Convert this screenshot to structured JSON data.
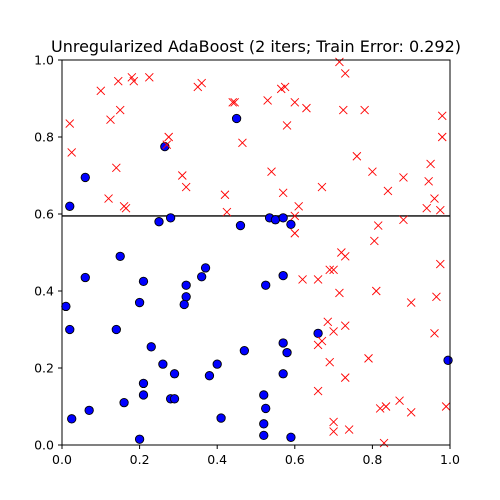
{
  "chart_data": {
    "type": "scatter",
    "title": "Unregularized AdaBoost (2 iters; Train Error: 0.292)",
    "xlabel": "",
    "ylabel": "",
    "xlim": [
      0,
      1
    ],
    "ylim": [
      0,
      1
    ],
    "xticks": [
      "0.0",
      "0.2",
      "0.4",
      "0.6",
      "0.8",
      "1.0"
    ],
    "yticks": [
      "0.0",
      "0.2",
      "0.4",
      "0.6",
      "0.8",
      "1.0"
    ],
    "grid": false,
    "boundary_y": 0.595,
    "colors": {
      "circle_fill": "#0000ff",
      "circle_edge": "#000000",
      "cross": "#ff0000",
      "boundary": "#000000"
    },
    "series": [
      {
        "marker": "circle",
        "points": [
          [
            0.02,
            0.62
          ],
          [
            0.06,
            0.695
          ],
          [
            0.265,
            0.775
          ],
          [
            0.45,
            0.848
          ],
          [
            0.25,
            0.58
          ],
          [
            0.28,
            0.59
          ],
          [
            0.46,
            0.57
          ],
          [
            0.535,
            0.59
          ],
          [
            0.55,
            0.585
          ],
          [
            0.57,
            0.59
          ],
          [
            0.59,
            0.573
          ],
          [
            0.15,
            0.49
          ],
          [
            0.06,
            0.435
          ],
          [
            0.21,
            0.425
          ],
          [
            0.37,
            0.46
          ],
          [
            0.36,
            0.437
          ],
          [
            0.32,
            0.415
          ],
          [
            0.32,
            0.385
          ],
          [
            0.315,
            0.365
          ],
          [
            0.525,
            0.415
          ],
          [
            0.57,
            0.44
          ],
          [
            0.01,
            0.36
          ],
          [
            0.2,
            0.37
          ],
          [
            0.02,
            0.3
          ],
          [
            0.14,
            0.3
          ],
          [
            0.23,
            0.255
          ],
          [
            0.47,
            0.245
          ],
          [
            0.57,
            0.265
          ],
          [
            0.58,
            0.24
          ],
          [
            0.66,
            0.29
          ],
          [
            0.26,
            0.21
          ],
          [
            0.4,
            0.21
          ],
          [
            0.29,
            0.185
          ],
          [
            0.38,
            0.18
          ],
          [
            0.57,
            0.185
          ],
          [
            0.21,
            0.16
          ],
          [
            0.21,
            0.13
          ],
          [
            0.52,
            0.13
          ],
          [
            0.16,
            0.11
          ],
          [
            0.28,
            0.12
          ],
          [
            0.29,
            0.12
          ],
          [
            0.525,
            0.095
          ],
          [
            0.07,
            0.09
          ],
          [
            0.025,
            0.068
          ],
          [
            0.41,
            0.07
          ],
          [
            0.52,
            0.055
          ],
          [
            0.52,
            0.025
          ],
          [
            0.2,
            0.015
          ],
          [
            0.59,
            0.02
          ],
          [
            0.995,
            0.22
          ]
        ]
      },
      {
        "marker": "cross",
        "points": [
          [
            0.02,
            0.835
          ],
          [
            0.025,
            0.76
          ],
          [
            0.1,
            0.92
          ],
          [
            0.125,
            0.845
          ],
          [
            0.145,
            0.945
          ],
          [
            0.15,
            0.87
          ],
          [
            0.18,
            0.955
          ],
          [
            0.185,
            0.945
          ],
          [
            0.225,
            0.955
          ],
          [
            0.14,
            0.72
          ],
          [
            0.12,
            0.64
          ],
          [
            0.16,
            0.62
          ],
          [
            0.165,
            0.615
          ],
          [
            0.27,
            0.78
          ],
          [
            0.275,
            0.8
          ],
          [
            0.31,
            0.7
          ],
          [
            0.32,
            0.67
          ],
          [
            0.35,
            0.93
          ],
          [
            0.36,
            0.94
          ],
          [
            0.44,
            0.89
          ],
          [
            0.445,
            0.89
          ],
          [
            0.465,
            0.785
          ],
          [
            0.42,
            0.65
          ],
          [
            0.425,
            0.605
          ],
          [
            0.53,
            0.895
          ],
          [
            0.54,
            0.71
          ],
          [
            0.565,
            0.925
          ],
          [
            0.575,
            0.93
          ],
          [
            0.57,
            0.655
          ],
          [
            0.58,
            0.83
          ],
          [
            0.6,
            0.89
          ],
          [
            0.6,
            0.595
          ],
          [
            0.61,
            0.62
          ],
          [
            0.6,
            0.55
          ],
          [
            0.63,
            0.875
          ],
          [
            0.67,
            0.67
          ],
          [
            0.715,
            0.995
          ],
          [
            0.73,
            0.965
          ],
          [
            0.725,
            0.87
          ],
          [
            0.76,
            0.75
          ],
          [
            0.78,
            0.87
          ],
          [
            0.8,
            0.71
          ],
          [
            0.84,
            0.66
          ],
          [
            0.815,
            0.57
          ],
          [
            0.805,
            0.53
          ],
          [
            0.88,
            0.695
          ],
          [
            0.88,
            0.585
          ],
          [
            0.945,
            0.685
          ],
          [
            0.95,
            0.73
          ],
          [
            0.96,
            0.64
          ],
          [
            0.94,
            0.615
          ],
          [
            0.98,
            0.855
          ],
          [
            0.98,
            0.8
          ],
          [
            0.975,
            0.61
          ],
          [
            0.62,
            0.43
          ],
          [
            0.66,
            0.43
          ],
          [
            0.69,
            0.455
          ],
          [
            0.7,
            0.455
          ],
          [
            0.72,
            0.5
          ],
          [
            0.73,
            0.49
          ],
          [
            0.715,
            0.395
          ],
          [
            0.81,
            0.4
          ],
          [
            0.975,
            0.47
          ],
          [
            0.965,
            0.385
          ],
          [
            0.9,
            0.37
          ],
          [
            0.66,
            0.26
          ],
          [
            0.67,
            0.27
          ],
          [
            0.685,
            0.32
          ],
          [
            0.7,
            0.295
          ],
          [
            0.73,
            0.31
          ],
          [
            0.69,
            0.215
          ],
          [
            0.79,
            0.225
          ],
          [
            0.96,
            0.29
          ],
          [
            0.73,
            0.175
          ],
          [
            0.66,
            0.14
          ],
          [
            0.87,
            0.115
          ],
          [
            0.82,
            0.095
          ],
          [
            0.835,
            0.1
          ],
          [
            0.9,
            0.085
          ],
          [
            0.99,
            0.1
          ],
          [
            0.7,
            0.06
          ],
          [
            0.7,
            0.035
          ],
          [
            0.74,
            0.04
          ],
          [
            0.83,
            0.005
          ]
        ]
      }
    ]
  }
}
